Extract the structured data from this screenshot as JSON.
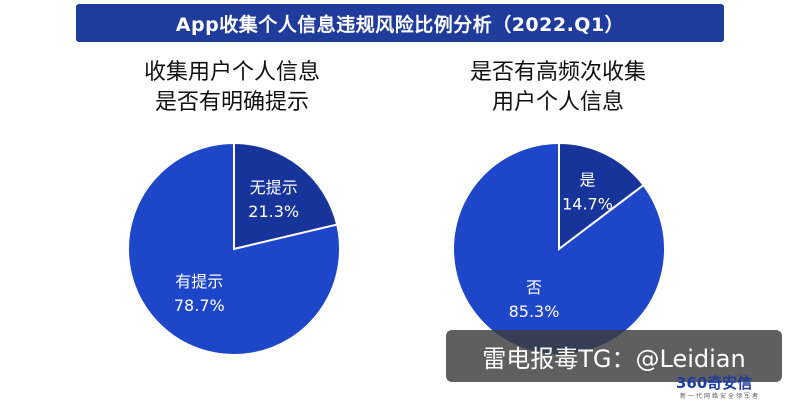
{
  "header": {
    "title": "App收集个人信息违规风险比例分析（2022.Q1）"
  },
  "colors": {
    "header_bg": "#1f3b9b",
    "primary_slice": "#1d46c8",
    "minor_slice": "#17349b",
    "slice_border": "#ffffff"
  },
  "chart_data": [
    {
      "type": "pie",
      "title_lines": [
        "收集用户个人信息",
        "是否有明确提示"
      ],
      "slices": [
        {
          "label": "无提示",
          "value": 21.3,
          "display": "21.3%"
        },
        {
          "label": "有提示",
          "value": 78.7,
          "display": "78.7%"
        }
      ]
    },
    {
      "type": "pie",
      "title_lines": [
        "是否有高频次收集",
        "用户个人信息"
      ],
      "slices": [
        {
          "label": "是",
          "value": 14.7,
          "display": "14.7%"
        },
        {
          "label": "否",
          "value": 85.3,
          "display": "85.3%"
        }
      ]
    }
  ],
  "watermark": {
    "text": "雷电报毒TG：@Leidian"
  },
  "logo": {
    "main": "360奇安信",
    "sub": "新一代网络安全领军者"
  }
}
